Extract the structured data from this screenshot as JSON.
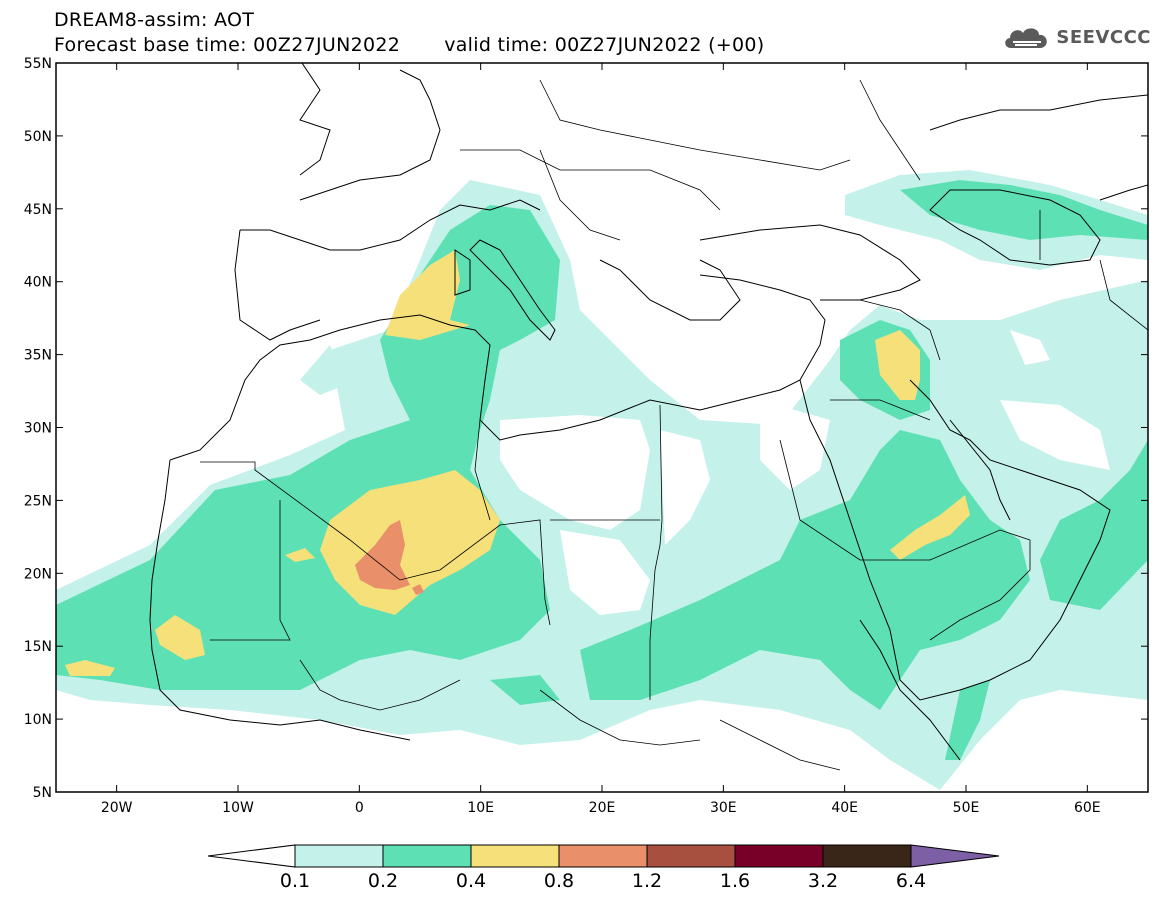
{
  "header": {
    "title": "DREAM8-assim: AOT",
    "base_label": "Forecast base time: 00Z27JUN2022",
    "valid_label": "valid time: 00Z27JUN2022 (+00)"
  },
  "logo": {
    "text": "SEEVCCC",
    "icon": "cloud-icon"
  },
  "map": {
    "variable": "AOT",
    "lon_range": [
      -25,
      65
    ],
    "lat_range": [
      5,
      55
    ],
    "lat_ticks": [
      "5N",
      "10N",
      "15N",
      "20N",
      "25N",
      "30N",
      "35N",
      "40N",
      "45N",
      "50N",
      "55N"
    ],
    "lon_ticks": [
      "20W",
      "10W",
      "0",
      "10E",
      "20E",
      "30E",
      "40E",
      "50E",
      "60E"
    ]
  },
  "colorbar": {
    "levels": [
      "0.1",
      "0.2",
      "0.4",
      "0.8",
      "1.2",
      "1.6",
      "3.2",
      "6.4"
    ],
    "colors": [
      "#c4f1ea",
      "#5ee0b5",
      "#f5e07a",
      "#e9906a",
      "#a85040",
      "#780028",
      "#3a2618",
      "#7d5fa5"
    ],
    "under_color": "#ffffff",
    "over_color": "#7d5fa5"
  }
}
